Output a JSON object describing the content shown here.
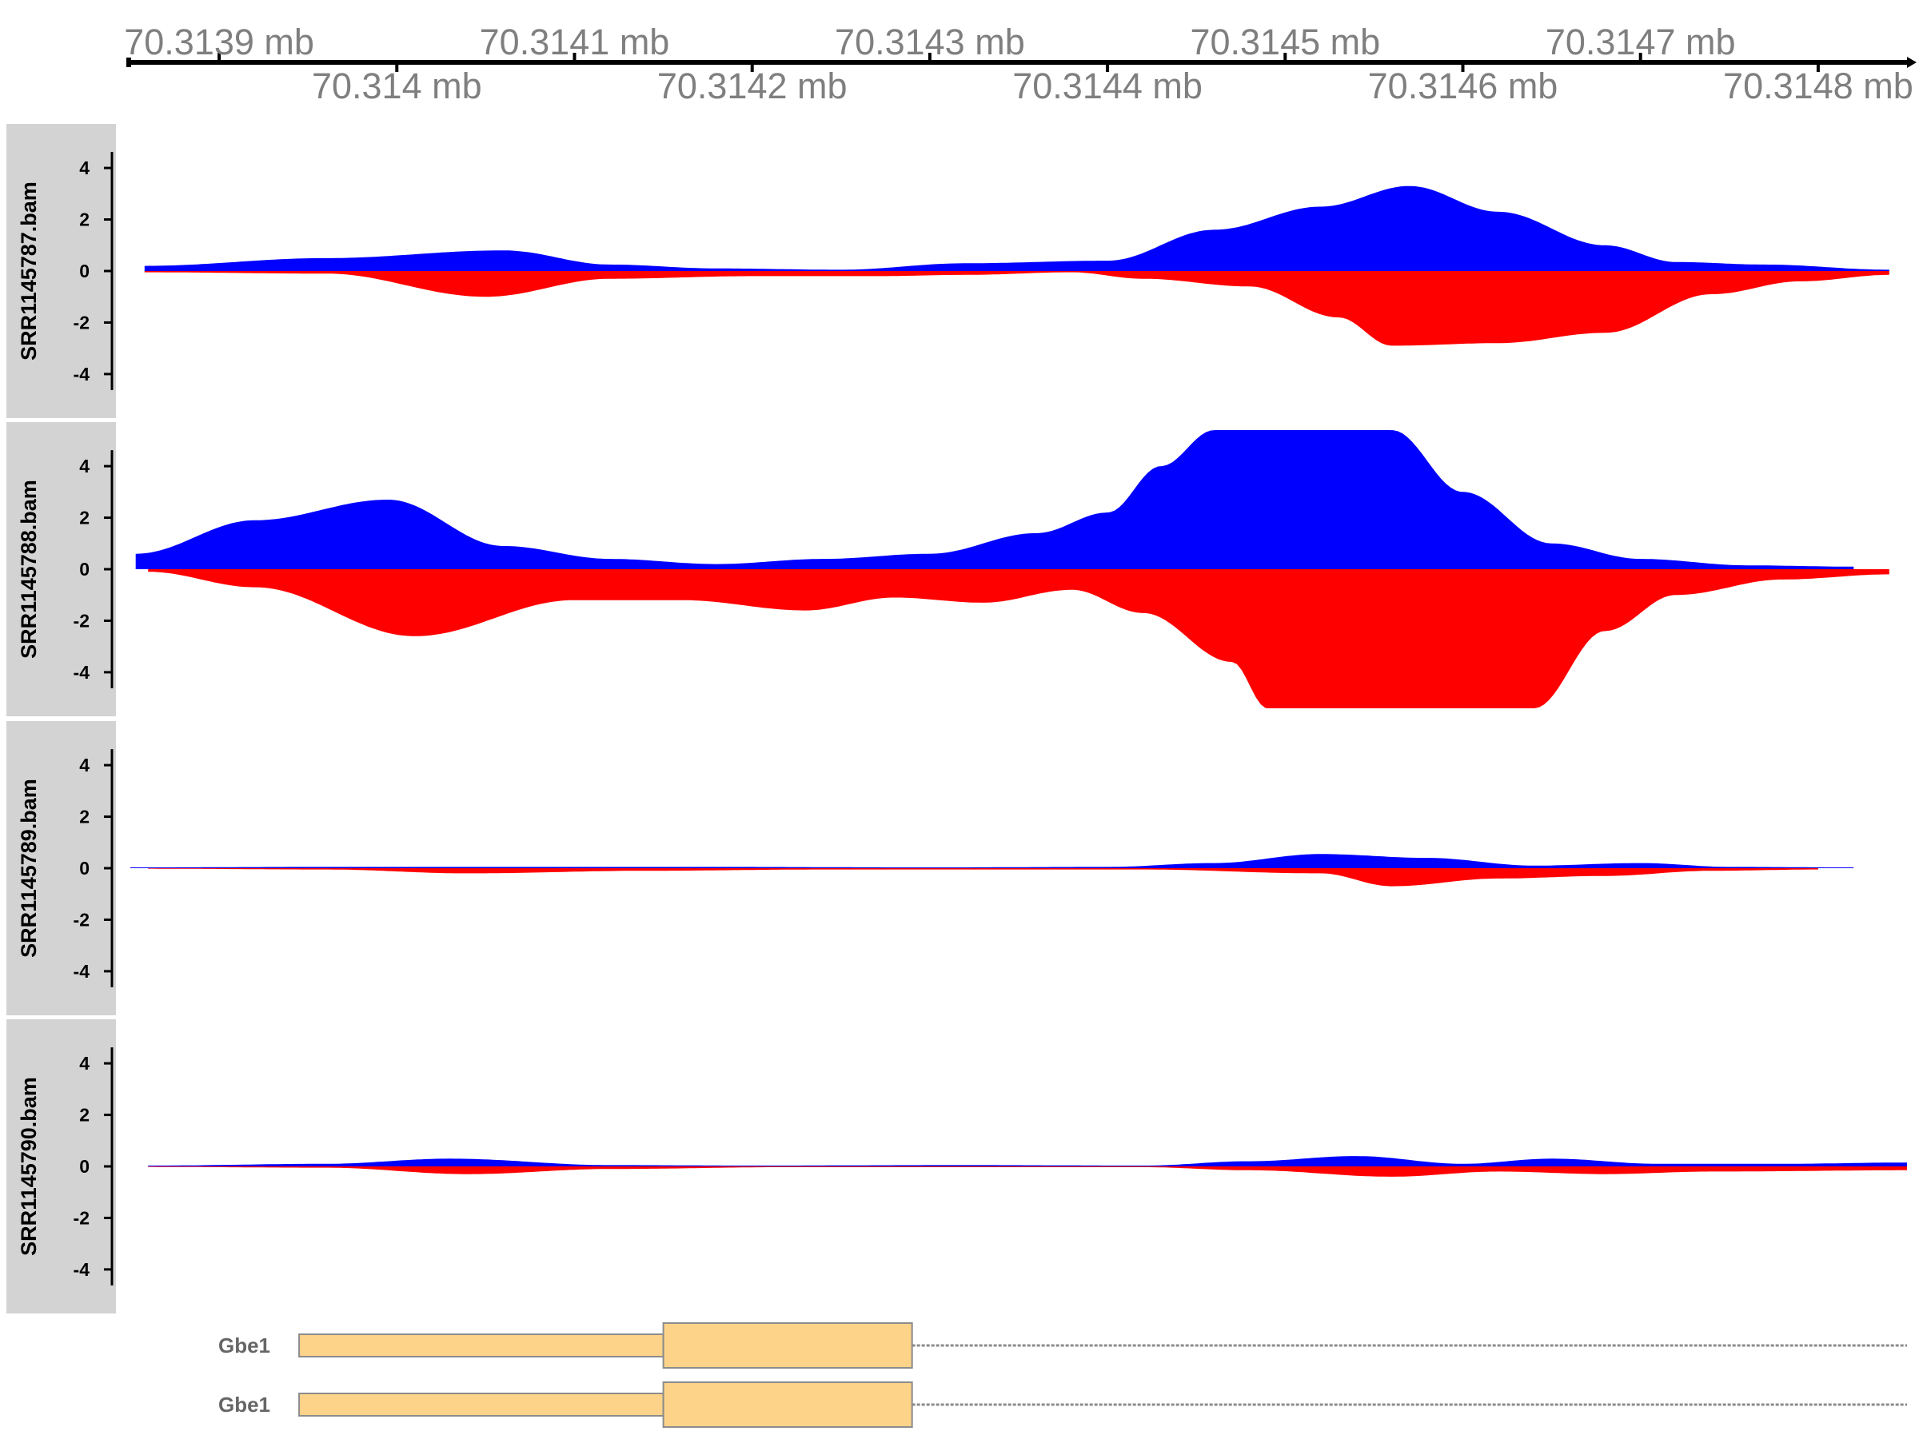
{
  "chart_data": {
    "type": "area",
    "description_of_strands": "plus strand above zero, minus strand below zero",
    "colors": {
      "plus": "#0000ff",
      "minus": "#ff0000",
      "panel": "#d3d3d3",
      "gene_fill": "#fdd38a",
      "gene_stroke": "#8c8c8c",
      "intron": "#8c8c8c"
    },
    "axis": {
      "unit": "mb",
      "top_ticks": [
        "70.3139 mb",
        "70.3141 mb",
        "70.3143 mb",
        "70.3145 mb",
        "70.3147 mb"
      ],
      "bottom_ticks": [
        "70.314 mb",
        "70.3142 mb",
        "70.3144 mb",
        "70.3146 mb",
        "70.3148 mb"
      ],
      "top_tick_values": [
        70.3139,
        70.3141,
        70.3143,
        70.3145,
        70.3147
      ],
      "bottom_tick_values": [
        70.314,
        70.3142,
        70.3144,
        70.3146,
        70.3148
      ],
      "xlim": [
        70.31385,
        70.31485
      ]
    },
    "y_ticks": [
      "4",
      "2",
      "0",
      "-2",
      "-4"
    ],
    "y_tick_values": [
      4,
      2,
      0,
      -2,
      -4
    ],
    "ylim": [
      -5.4,
      5.4
    ],
    "tracks": [
      {
        "name": "SRR1145787.bam",
        "plus": {
          "x": [
            70.313858,
            70.31396,
            70.31406,
            70.31412,
            70.31418,
            70.31425,
            70.31432,
            70.3144,
            70.31446,
            70.31452,
            70.31457,
            70.31462,
            70.31468,
            70.31472,
            70.31477,
            70.31484
          ],
          "y": [
            0.2,
            0.5,
            0.8,
            0.25,
            0.1,
            0.05,
            0.3,
            0.4,
            1.6,
            2.5,
            3.3,
            2.3,
            1.0,
            0.35,
            0.25,
            0.05
          ]
        },
        "minus": {
          "x": [
            70.313858,
            70.31396,
            70.31405,
            70.31412,
            70.3142,
            70.31427,
            70.31432,
            70.31438,
            70.31442,
            70.31448,
            70.31453,
            70.31456,
            70.31462,
            70.31468,
            70.31474,
            70.31479,
            70.31484
          ],
          "y": [
            -0.05,
            -0.1,
            -1.0,
            -0.3,
            -0.2,
            -0.2,
            -0.15,
            -0.05,
            -0.3,
            -0.6,
            -1.8,
            -2.9,
            -2.8,
            -2.4,
            -0.9,
            -0.4,
            -0.15
          ]
        }
      },
      {
        "name": "SRR1145788.bam",
        "plus": {
          "x": [
            70.313853,
            70.31392,
            70.313995,
            70.31406,
            70.31412,
            70.31418,
            70.31424,
            70.3143,
            70.31436,
            70.3144,
            70.31443,
            70.31446,
            70.31452,
            70.31456,
            70.3146,
            70.31465,
            70.3147,
            70.31476,
            70.31482
          ],
          "y": [
            0.6,
            1.9,
            2.7,
            0.9,
            0.4,
            0.2,
            0.4,
            0.6,
            1.4,
            2.2,
            4.0,
            5.4,
            5.4,
            5.4,
            3.0,
            1.0,
            0.4,
            0.15,
            0.1
          ]
        },
        "minus": {
          "x": [
            70.31386,
            70.31392,
            70.31401,
            70.3141,
            70.31416,
            70.31423,
            70.31428,
            70.31433,
            70.31438,
            70.31442,
            70.31447,
            70.31449,
            70.31455,
            70.31464,
            70.31468,
            70.31472,
            70.31478,
            70.31484
          ],
          "y": [
            -0.1,
            -0.7,
            -2.6,
            -1.2,
            -1.2,
            -1.6,
            -1.1,
            -1.3,
            -0.8,
            -1.7,
            -3.6,
            -5.4,
            -5.4,
            -5.4,
            -2.4,
            -1.0,
            -0.4,
            -0.2
          ]
        }
      },
      {
        "name": "SRR1145789.bam",
        "plus": {
          "x": [
            70.31385,
            70.31396,
            70.31406,
            70.31418,
            70.3143,
            70.3144,
            70.31446,
            70.31452,
            70.31458,
            70.31464,
            70.3147,
            70.31475,
            70.31482
          ],
          "y": [
            0.03,
            0.05,
            0.05,
            0.05,
            0.03,
            0.05,
            0.2,
            0.55,
            0.4,
            0.1,
            0.2,
            0.05,
            0.03
          ]
        },
        "minus": {
          "x": [
            70.31386,
            70.31396,
            70.31404,
            70.31414,
            70.31424,
            70.31434,
            70.31442,
            70.31452,
            70.31456,
            70.31462,
            70.31468,
            70.31474,
            70.3148
          ],
          "y": [
            -0.02,
            -0.05,
            -0.2,
            -0.1,
            -0.05,
            -0.05,
            -0.05,
            -0.2,
            -0.7,
            -0.4,
            -0.3,
            -0.1,
            -0.05
          ]
        }
      },
      {
        "name": "SRR1145790.bam",
        "plus": {
          "x": [
            70.31386,
            70.31396,
            70.31403,
            70.31412,
            70.3142,
            70.31432,
            70.31442,
            70.31448,
            70.31454,
            70.3146,
            70.31465,
            70.31471,
            70.31478,
            70.31485
          ],
          "y": [
            0.03,
            0.1,
            0.3,
            0.05,
            0.03,
            0.05,
            0.03,
            0.2,
            0.4,
            0.1,
            0.3,
            0.1,
            0.1,
            0.15
          ]
        },
        "minus": {
          "x": [
            70.31386,
            70.31396,
            70.31404,
            70.31412,
            70.31422,
            70.31432,
            70.31442,
            70.31448,
            70.31456,
            70.31462,
            70.31468,
            70.31474,
            70.31485
          ],
          "y": [
            -0.02,
            -0.05,
            -0.3,
            -0.1,
            -0.03,
            -0.03,
            -0.03,
            -0.15,
            -0.4,
            -0.2,
            -0.3,
            -0.2,
            -0.15
          ]
        }
      }
    ],
    "genes": [
      {
        "name": "Gbe1",
        "utr": [
          70.313945,
          70.31415
        ],
        "cds": [
          70.31415,
          70.31429
        ],
        "intron_end": 70.31485
      },
      {
        "name": "Gbe1",
        "utr": [
          70.313945,
          70.31415
        ],
        "cds": [
          70.31415,
          70.31429
        ],
        "intron_end": 70.31485
      }
    ]
  }
}
